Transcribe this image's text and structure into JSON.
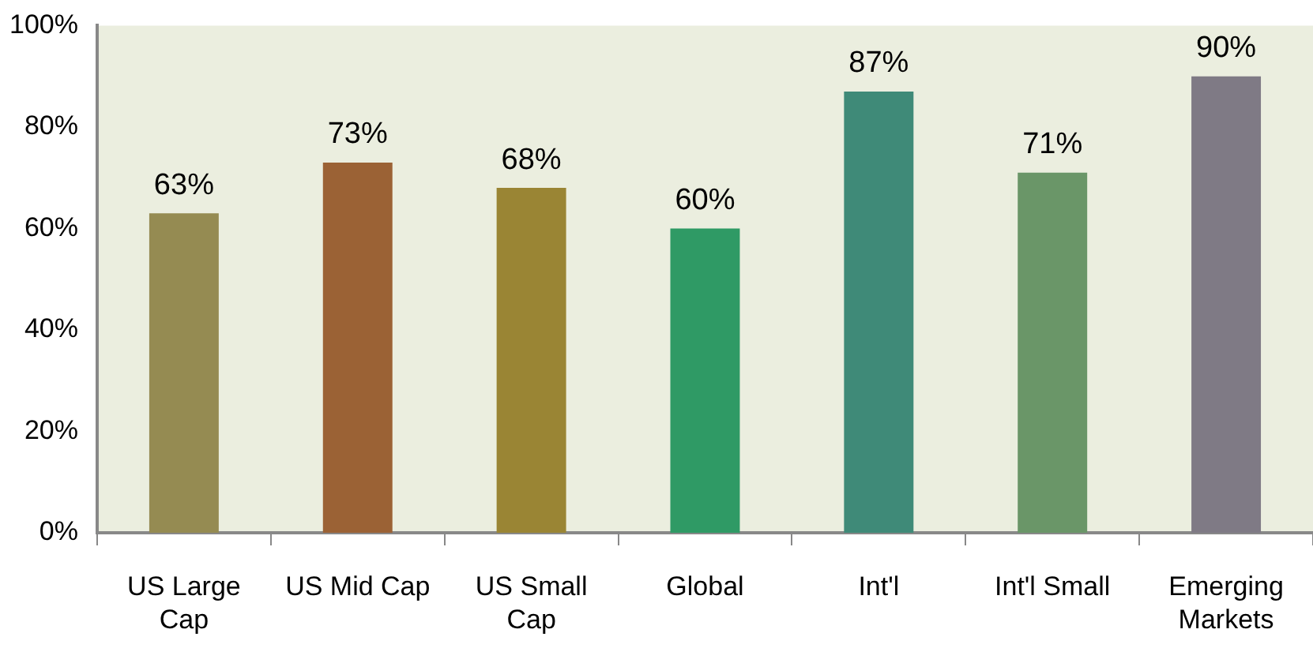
{
  "chart_data": {
    "type": "bar",
    "categories": [
      "US Large Cap",
      "US Mid Cap",
      "US Small Cap",
      "Global",
      "Int'l",
      "Int'l Small",
      "Emerging Markets"
    ],
    "values": [
      63,
      73,
      68,
      60,
      87,
      71,
      90
    ],
    "colors": [
      "#958b52",
      "#9b6235",
      "#9a8534",
      "#2f9a65",
      "#3f8a78",
      "#6a9668",
      "#7f7a85"
    ],
    "ylim": [
      0,
      100
    ],
    "yticks": [
      {
        "value": 0,
        "label": "0%"
      },
      {
        "value": 20,
        "label": "20%"
      },
      {
        "value": 40,
        "label": "40%"
      },
      {
        "value": 60,
        "label": "60%"
      },
      {
        "value": 80,
        "label": "80%"
      },
      {
        "value": 100,
        "label": "100%"
      }
    ],
    "value_labels": [
      "63%",
      "73%",
      "68%",
      "60%",
      "87%",
      "71%",
      "90%"
    ],
    "grid": false,
    "legend": false
  }
}
